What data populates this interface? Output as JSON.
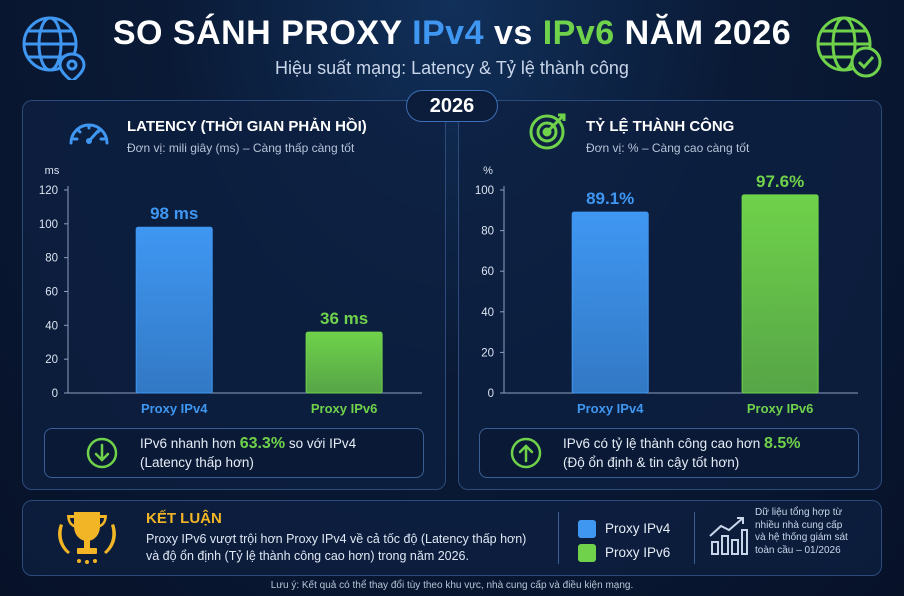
{
  "header": {
    "title_prefix": "SO SÁNH PROXY ",
    "title_v4": "IPv4",
    "title_vs": " vs ",
    "title_v6": "IPv6",
    "title_suffix": " NĂM 2026",
    "subtitle": "Hiệu suất mạng: Latency & Tỷ lệ thành công",
    "year_badge": "2026"
  },
  "icons": {
    "left_globe": "globe-location-icon",
    "right_globe": "globe-check-icon",
    "latency": "speedometer-icon",
    "success": "target-icon",
    "down": "arrow-down-icon",
    "up": "arrow-up-icon",
    "trophy": "trophy-icon",
    "stats": "bar-chart-trend-icon"
  },
  "colors": {
    "ipv4": "#3f97f2",
    "ipv6": "#6fd24a",
    "background": "#0a1a36"
  },
  "latency_panel": {
    "title": "LATENCY (THỜI GIAN PHẢN HỒI)",
    "subtitle": "Đơn vị: mili giây (ms) – Càng thấp càng tốt",
    "info_prefix": "IPv6 nhanh hơn ",
    "info_value": "63.3%",
    "info_suffix": " so với IPv4",
    "info_line2": "(Latency thấp hơn)"
  },
  "success_panel": {
    "title": "TỶ LỆ THÀNH CÔNG",
    "subtitle": "Đơn vị: % – Càng cao càng tốt",
    "info_prefix": "IPv6 có tỷ lệ thành công cao hơn ",
    "info_value": "8.5%",
    "info_line2": "(Độ ổn định & tin cậy tốt hơn)"
  },
  "chart_data": [
    {
      "type": "bar",
      "title": "LATENCY (THỜI GIAN PHẢN HỒI)",
      "ylabel": "ms",
      "categories": [
        "Proxy IPv4",
        "Proxy IPv6"
      ],
      "values": [
        98,
        36
      ],
      "data_labels": [
        "98 ms",
        "36 ms"
      ],
      "ylim": [
        0,
        120
      ],
      "yticks": [
        0,
        20,
        40,
        60,
        80,
        100,
        120
      ],
      "grid": false
    },
    {
      "type": "bar",
      "title": "TỶ LỆ THÀNH CÔNG",
      "ylabel": "%",
      "categories": [
        "Proxy IPv4",
        "Proxy IPv6"
      ],
      "values": [
        89.1,
        97.6
      ],
      "data_labels": [
        "89.1%",
        "97.6%"
      ],
      "ylim": [
        0,
        100
      ],
      "yticks": [
        0,
        20,
        40,
        60,
        80,
        100
      ],
      "grid": false
    }
  ],
  "conclusion": {
    "title": "KẾT LUẬN",
    "line1": "Proxy IPv6 vượt trội hơn Proxy IPv4 về cả tốc độ (Latency thấp hơn)",
    "line2": "và độ ổn định (Tỷ lệ thành công cao hơn)  trong năm 2026.",
    "legend": [
      "Proxy IPv4",
      "Proxy IPv6"
    ],
    "source_lines": [
      "Dữ liệu tổng hợp từ",
      "nhiều nhà cung cấp",
      "và hệ thống giám sát",
      "toàn cầu – 01/2026"
    ]
  },
  "footnote": "Lưu ý: Kết quả có thể thay đổi tùy theo khu vực, nhà cung cấp và điều kiện mạng."
}
